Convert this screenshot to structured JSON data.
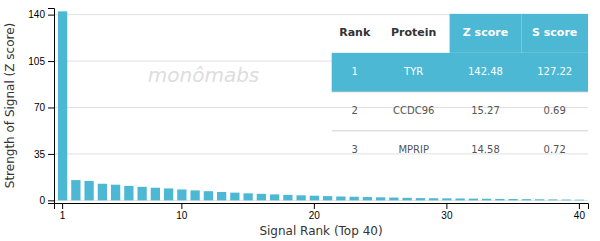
{
  "chart_data": {
    "type": "bar",
    "xlabel": "Signal Rank (Top 40)",
    "ylabel": "Strength of Signal (Z score)",
    "categories": [
      "1",
      null,
      null,
      null,
      null,
      null,
      null,
      null,
      null,
      "10",
      null,
      null,
      null,
      null,
      null,
      null,
      null,
      null,
      null,
      "20",
      null,
      null,
      null,
      null,
      null,
      null,
      null,
      null,
      null,
      "30",
      null,
      null,
      null,
      null,
      null,
      null,
      null,
      null,
      null,
      "40"
    ],
    "values": [
      142.48,
      15.27,
      14.58,
      12.5,
      11.8,
      10.9,
      10.2,
      9.5,
      9.0,
      8.2,
      7.5,
      6.9,
      6.3,
      5.8,
      5.3,
      4.9,
      4.5,
      4.1,
      3.8,
      3.5,
      3.2,
      2.9,
      2.7,
      2.5,
      2.3,
      2.1,
      1.9,
      1.7,
      1.6,
      1.5,
      1.4,
      1.3,
      1.2,
      1.1,
      1.0,
      0.9,
      0.8,
      0.7,
      0.6,
      0.5
    ],
    "color": "#4db8d4",
    "ylim": [
      -2,
      145
    ],
    "yticks": [
      0,
      35,
      70,
      105,
      140
    ],
    "grid": true,
    "annotations": [
      {
        "text": "monômabs",
        "color": "#dddddd"
      }
    ],
    "table": {
      "columns": [
        "Rank",
        "Protein",
        "Z score",
        "S score"
      ],
      "rows": [
        [
          "1",
          "TYR",
          "142.48",
          "127.22"
        ],
        [
          "2",
          "CCDC96",
          "15.27",
          "0.69"
        ],
        [
          "3",
          "MPRIP",
          "14.58",
          "0.72"
        ]
      ]
    }
  }
}
